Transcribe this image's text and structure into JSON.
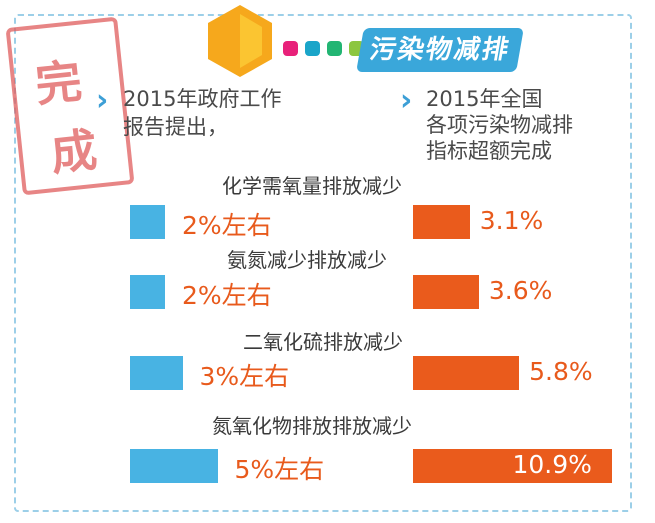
{
  "banner": {
    "title": "污染物减排",
    "colors": [
      "#e8217a",
      "#1aa5c9",
      "#22b573",
      "#8cc63f"
    ]
  },
  "stamp": {
    "text": [
      "完",
      "成"
    ]
  },
  "intro": {
    "left": [
      "2015年政府工作",
      "报告提出，"
    ],
    "right": [
      "2015年全国",
      "各项污染物减排",
      "指标超额完成"
    ]
  },
  "chart_data": {
    "type": "bar",
    "categories": [
      "化学需氧量排放减少",
      "氨氮减少排放减少",
      "二氧化硫排放减少",
      "氮氧化物排放排放减少"
    ],
    "series": [
      {
        "values": [
          2,
          2,
          3,
          5
        ],
        "labels": [
          "2%左右",
          "2%左右",
          "3%左右",
          "5%左右"
        ],
        "color": "#48b3e3"
      },
      {
        "values": [
          3.1,
          3.6,
          5.8,
          10.9
        ],
        "labels": [
          "3.1%",
          "3.6%",
          "5.8%",
          "10.9%"
        ],
        "color": "#ea5b1c"
      }
    ]
  }
}
